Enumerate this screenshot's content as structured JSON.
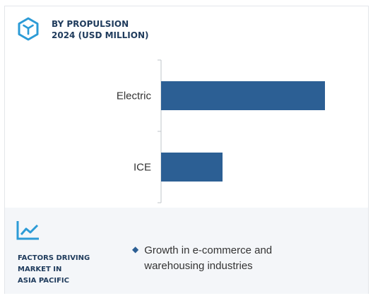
{
  "header": {
    "title_line1": "BY PROPULSION",
    "title_line2": "2024 (USD MILLION)",
    "icon": "cube-hexagon-icon"
  },
  "chart_data": {
    "type": "bar",
    "orientation": "horizontal",
    "categories": [
      "Electric",
      "ICE"
    ],
    "values": [
      232,
      87
    ],
    "bar_color": "#2c5f94",
    "grid": false,
    "legend": "none"
  },
  "footer": {
    "icon": "trend-line-icon",
    "title_line1": "FACTORS DRIVING",
    "title_line2": "MARKET IN",
    "title_line3": "ASIA PACIFIC",
    "bullets": [
      "Growth in e-commerce and warehousing industries"
    ]
  },
  "colors": {
    "accent": "#2c5f94",
    "title_text": "#1f3b5c",
    "footer_bg": "#f4f6f9"
  }
}
